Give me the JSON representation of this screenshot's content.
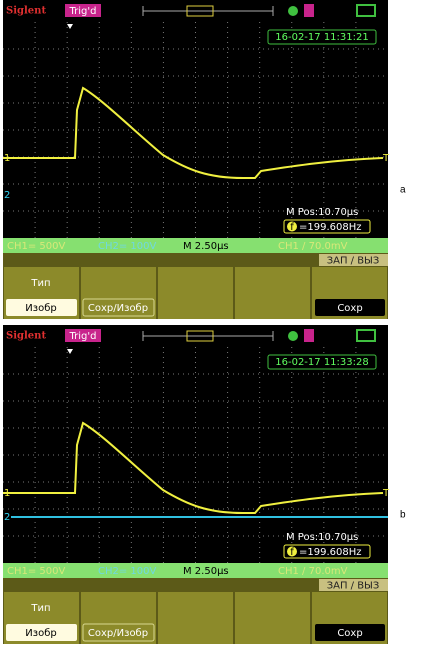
{
  "panels": [
    {
      "label": "a",
      "brand": "Siglent",
      "trigger": "Trig'd",
      "timestamp": "16-02-17 11:31:21",
      "ch1_marker": "1",
      "ch2_marker": "2",
      "trigger_marker": "T",
      "m_pos": "M Pos:10.70μs",
      "freq_icon": "f",
      "frequency": "=199.608Hz",
      "ch2_trace": false,
      "status": {
        "ch1": "CH1= 500V",
        "ch2": "CH2= 100V",
        "timebase": "M 2.50μs",
        "trigger": "CH1 / 70.0mV"
      },
      "menu": {
        "title": "ЗАП / ВЫЗ",
        "type_label": "Тип",
        "type_value": "Изобр",
        "save_image": "Сохр/Изобр",
        "save": "Сохр"
      }
    },
    {
      "label": "b",
      "brand": "Siglent",
      "trigger": "Trig'd",
      "timestamp": "16-02-17 11:33:28",
      "ch1_marker": "1",
      "ch2_marker": "2",
      "trigger_marker": "T",
      "m_pos": "M Pos:10.70μs",
      "freq_icon": "f",
      "frequency": "=199.608Hz",
      "ch2_trace": true,
      "status": {
        "ch1": "CH1= 500V",
        "ch2": "CH2= 100V",
        "timebase": "M 2.50μs",
        "trigger": "CH1 / 70.0mV"
      },
      "menu": {
        "title": "ЗАП / ВЫЗ",
        "type_label": "Тип",
        "type_value": "Изобр",
        "save_image": "Сохр/Изобр",
        "save": "Сохр"
      }
    }
  ]
}
